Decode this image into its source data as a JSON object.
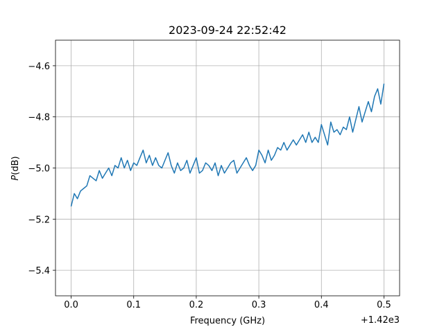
{
  "chart_data": {
    "type": "line",
    "title": "2023-09-24 22:52:42",
    "xlabel": "Frequency (GHz)",
    "ylabel_italic": "P",
    "ylabel_rest": "(dB)",
    "x_offset_label": "+1.42e3",
    "xlim": [
      -0.025,
      0.525
    ],
    "ylim": [
      -5.5,
      -4.5
    ],
    "grid": true,
    "x_ticks": [
      0.0,
      0.1,
      0.2,
      0.3,
      0.4,
      0.5
    ],
    "x_tick_labels": [
      "0.0",
      "0.1",
      "0.2",
      "0.3",
      "0.4",
      "0.5"
    ],
    "y_ticks": [
      -4.6,
      -4.8,
      -5.0,
      -5.2,
      -5.4
    ],
    "y_tick_labels": [
      "−4.6",
      "−4.8",
      "−5.0",
      "−5.2",
      "−5.4"
    ],
    "series_color": "#1f77b4",
    "series": [
      {
        "x": [
          0.0,
          0.005,
          0.01,
          0.015,
          0.02,
          0.025,
          0.03,
          0.035,
          0.04,
          0.045,
          0.05,
          0.055,
          0.06,
          0.065,
          0.07,
          0.075,
          0.08,
          0.085,
          0.09,
          0.095,
          0.1,
          0.105,
          0.11,
          0.115,
          0.12,
          0.125,
          0.13,
          0.135,
          0.14,
          0.145,
          0.15,
          0.155,
          0.16,
          0.165,
          0.17,
          0.175,
          0.18,
          0.185,
          0.19,
          0.195,
          0.2,
          0.205,
          0.21,
          0.215,
          0.22,
          0.225,
          0.23,
          0.235,
          0.24,
          0.245,
          0.25,
          0.255,
          0.26,
          0.265,
          0.27,
          0.275,
          0.28,
          0.285,
          0.29,
          0.295,
          0.3,
          0.305,
          0.31,
          0.315,
          0.32,
          0.325,
          0.33,
          0.335,
          0.34,
          0.345,
          0.35,
          0.355,
          0.36,
          0.365,
          0.37,
          0.375,
          0.38,
          0.385,
          0.39,
          0.395,
          0.4,
          0.405,
          0.41,
          0.415,
          0.42,
          0.425,
          0.43,
          0.435,
          0.44,
          0.445,
          0.45,
          0.455,
          0.46,
          0.465,
          0.47,
          0.475,
          0.48,
          0.485,
          0.49,
          0.495,
          0.5
        ],
        "y": [
          -5.15,
          -5.1,
          -5.12,
          -5.09,
          -5.08,
          -5.07,
          -5.03,
          -5.04,
          -5.05,
          -5.01,
          -5.04,
          -5.02,
          -5.0,
          -5.03,
          -4.99,
          -5.0,
          -4.96,
          -5.0,
          -4.97,
          -5.01,
          -4.98,
          -4.99,
          -4.96,
          -4.93,
          -4.98,
          -4.95,
          -4.99,
          -4.96,
          -4.99,
          -5.0,
          -4.97,
          -4.94,
          -4.99,
          -5.02,
          -4.98,
          -5.01,
          -5.0,
          -4.97,
          -5.02,
          -4.99,
          -4.96,
          -5.02,
          -5.01,
          -4.98,
          -4.99,
          -5.01,
          -4.98,
          -5.03,
          -4.99,
          -5.02,
          -5.0,
          -4.98,
          -4.97,
          -5.02,
          -5.0,
          -4.98,
          -4.96,
          -4.99,
          -5.01,
          -4.99,
          -4.93,
          -4.95,
          -4.98,
          -4.93,
          -4.97,
          -4.95,
          -4.92,
          -4.93,
          -4.9,
          -4.93,
          -4.91,
          -4.89,
          -4.91,
          -4.89,
          -4.87,
          -4.9,
          -4.86,
          -4.9,
          -4.88,
          -4.9,
          -4.83,
          -4.87,
          -4.91,
          -4.82,
          -4.86,
          -4.85,
          -4.87,
          -4.84,
          -4.85,
          -4.8,
          -4.86,
          -4.81,
          -4.76,
          -4.82,
          -4.78,
          -4.74,
          -4.78,
          -4.72,
          -4.69,
          -4.75,
          -4.67
        ]
      }
    ]
  }
}
